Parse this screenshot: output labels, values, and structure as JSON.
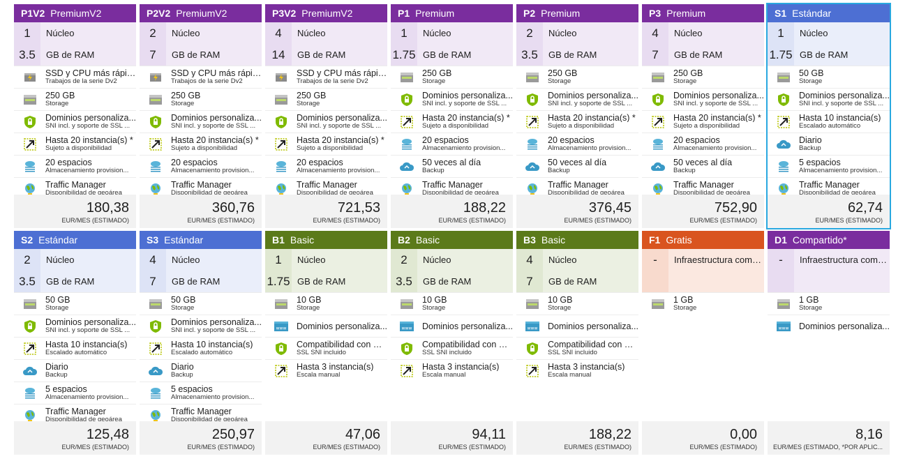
{
  "colors": {
    "premium_head": "#7a2d9e",
    "premium_light": "#e8dcf1",
    "premium_light2": "#f1e9f6",
    "standard_head": "#4d6fd3",
    "standard_light": "#dde3f6",
    "standard_light2": "#eaeefa",
    "basic_head": "#5b7a1a",
    "basic_light": "#e0e8d2",
    "basic_light2": "#ebf0e2",
    "free_head": "#d9541f",
    "free_light": "#f8dacd",
    "free_light2": "#fbe8e0",
    "shared_head": "#7a2d9e",
    "shared_light": "#e8dcf1",
    "shared_light2": "#f1e9f6",
    "selected_border": "#29a8e0"
  },
  "tiles": [
    {
      "code": "P1V2",
      "name": "PremiumV2",
      "scheme": "premium",
      "cores": "1",
      "cores_label": "Núcleo",
      "ram": "3.5",
      "ram_label": "GB de RAM",
      "features": [
        {
          "icon": "ssd-icon",
          "title": "SSD y CPU más rápida",
          "sub": "Trabajos de la serie Dv2"
        },
        {
          "icon": "storage-icon",
          "title": "250 GB",
          "sub": "Storage"
        },
        {
          "icon": "shield-icon",
          "title": "Dominios personaliza...",
          "sub": "SNI incl. y soporte de SSL ..."
        },
        {
          "icon": "scale-icon",
          "title": "Hasta 20 instancia(s) *",
          "sub": "Sujeto a disponibilidad"
        },
        {
          "icon": "staging-icon",
          "title": "20 espacios",
          "sub": "Almacenamiento provision..."
        },
        {
          "icon": "globe-icon",
          "title": "Traffic Manager",
          "sub": "Disponibilidad de geoárea"
        }
      ],
      "price": "180,38",
      "unit": "EUR/MES (ESTIMADO)"
    },
    {
      "code": "P2V2",
      "name": "PremiumV2",
      "scheme": "premium",
      "cores": "2",
      "cores_label": "Núcleo",
      "ram": "7",
      "ram_label": "GB de RAM",
      "features": [
        {
          "icon": "ssd-icon",
          "title": "SSD y CPU más rápida",
          "sub": "Trabajos de la serie Dv2"
        },
        {
          "icon": "storage-icon",
          "title": "250 GB",
          "sub": "Storage"
        },
        {
          "icon": "shield-icon",
          "title": "Dominios personaliza...",
          "sub": "SNI incl. y soporte de SSL ..."
        },
        {
          "icon": "scale-icon",
          "title": "Hasta 20 instancia(s) *",
          "sub": "Sujeto a disponibilidad"
        },
        {
          "icon": "staging-icon",
          "title": "20 espacios",
          "sub": "Almacenamiento provision..."
        },
        {
          "icon": "globe-icon",
          "title": "Traffic Manager",
          "sub": "Disponibilidad de geoárea"
        }
      ],
      "price": "360,76",
      "unit": "EUR/MES (ESTIMADO)"
    },
    {
      "code": "P3V2",
      "name": "PremiumV2",
      "scheme": "premium",
      "cores": "4",
      "cores_label": "Núcleo",
      "ram": "14",
      "ram_label": "GB de RAM",
      "features": [
        {
          "icon": "ssd-icon",
          "title": "SSD y CPU más rápida",
          "sub": "Trabajos de la serie Dv2"
        },
        {
          "icon": "storage-icon",
          "title": "250 GB",
          "sub": "Storage"
        },
        {
          "icon": "shield-icon",
          "title": "Dominios personaliza...",
          "sub": "SNI incl. y soporte de SSL ..."
        },
        {
          "icon": "scale-icon",
          "title": "Hasta 20 instancia(s) *",
          "sub": "Sujeto a disponibilidad"
        },
        {
          "icon": "staging-icon",
          "title": "20 espacios",
          "sub": "Almacenamiento provision..."
        },
        {
          "icon": "globe-icon",
          "title": "Traffic Manager",
          "sub": "Disponibilidad de geoárea"
        }
      ],
      "price": "721,53",
      "unit": "EUR/MES (ESTIMADO)"
    },
    {
      "code": "P1",
      "name": "Premium",
      "scheme": "premium",
      "cores": "1",
      "cores_label": "Núcleo",
      "ram": "1.75",
      "ram_label": "GB de RAM",
      "features": [
        {
          "icon": "storage-icon",
          "title": "250 GB",
          "sub": "Storage"
        },
        {
          "icon": "shield-icon",
          "title": "Dominios personaliza...",
          "sub": "SNI incl. y soporte de SSL ..."
        },
        {
          "icon": "scale-icon",
          "title": "Hasta 20 instancia(s) *",
          "sub": "Sujeto a disponibilidad"
        },
        {
          "icon": "staging-icon",
          "title": "20 espacios",
          "sub": "Almacenamiento provision..."
        },
        {
          "icon": "backup-icon",
          "title": "50 veces al día",
          "sub": "Backup"
        },
        {
          "icon": "globe-icon",
          "title": "Traffic Manager",
          "sub": "Disponibilidad de geoárea"
        }
      ],
      "price": "188,22",
      "unit": "EUR/MES (ESTIMADO)"
    },
    {
      "code": "P2",
      "name": "Premium",
      "scheme": "premium",
      "cores": "2",
      "cores_label": "Núcleo",
      "ram": "3.5",
      "ram_label": "GB de RAM",
      "features": [
        {
          "icon": "storage-icon",
          "title": "250 GB",
          "sub": "Storage"
        },
        {
          "icon": "shield-icon",
          "title": "Dominios personaliza...",
          "sub": "SNI incl. y soporte de SSL ..."
        },
        {
          "icon": "scale-icon",
          "title": "Hasta 20 instancia(s) *",
          "sub": "Sujeto a disponibilidad"
        },
        {
          "icon": "staging-icon",
          "title": "20 espacios",
          "sub": "Almacenamiento provision..."
        },
        {
          "icon": "backup-icon",
          "title": "50 veces al día",
          "sub": "Backup"
        },
        {
          "icon": "globe-icon",
          "title": "Traffic Manager",
          "sub": "Disponibilidad de geoárea"
        }
      ],
      "price": "376,45",
      "unit": "EUR/MES (ESTIMADO)"
    },
    {
      "code": "P3",
      "name": "Premium",
      "scheme": "premium",
      "cores": "4",
      "cores_label": "Núcleo",
      "ram": "7",
      "ram_label": "GB de RAM",
      "features": [
        {
          "icon": "storage-icon",
          "title": "250 GB",
          "sub": "Storage"
        },
        {
          "icon": "shield-icon",
          "title": "Dominios personaliza...",
          "sub": "SNI incl. y soporte de SSL ..."
        },
        {
          "icon": "scale-icon",
          "title": "Hasta 20 instancia(s) *",
          "sub": "Sujeto a disponibilidad"
        },
        {
          "icon": "staging-icon",
          "title": "20 espacios",
          "sub": "Almacenamiento provision..."
        },
        {
          "icon": "backup-icon",
          "title": "50 veces al día",
          "sub": "Backup"
        },
        {
          "icon": "globe-icon",
          "title": "Traffic Manager",
          "sub": "Disponibilidad de geoárea"
        }
      ],
      "price": "752,90",
      "unit": "EUR/MES (ESTIMADO)"
    },
    {
      "code": "S1",
      "name": "Estándar",
      "scheme": "standard",
      "selected": true,
      "cores": "1",
      "cores_label": "Núcleo",
      "ram": "1.75",
      "ram_label": "GB de RAM",
      "features": [
        {
          "icon": "storage-icon",
          "title": "50 GB",
          "sub": "Storage"
        },
        {
          "icon": "shield-icon",
          "title": "Dominios personaliza...",
          "sub": "SNI incl. y soporte de SSL ..."
        },
        {
          "icon": "scale-icon",
          "title": "Hasta 10 instancia(s)",
          "sub": "Escalado automático"
        },
        {
          "icon": "backup-icon",
          "title": "Diario",
          "sub": "Backup"
        },
        {
          "icon": "staging-icon",
          "title": "5 espacios",
          "sub": "Almacenamiento provision..."
        },
        {
          "icon": "globe-icon",
          "title": "Traffic Manager",
          "sub": "Disponibilidad de geoárea"
        }
      ],
      "price": "62,74",
      "unit": "EUR/MES (ESTIMADO)"
    },
    {
      "code": "S2",
      "name": "Estándar",
      "scheme": "standard",
      "cores": "2",
      "cores_label": "Núcleo",
      "ram": "3.5",
      "ram_label": "GB de RAM",
      "features": [
        {
          "icon": "storage-icon",
          "title": "50 GB",
          "sub": "Storage"
        },
        {
          "icon": "shield-icon",
          "title": "Dominios personaliza...",
          "sub": "SNI incl. y soporte de SSL ..."
        },
        {
          "icon": "scale-icon",
          "title": "Hasta 10 instancia(s)",
          "sub": "Escalado automático"
        },
        {
          "icon": "backup-icon",
          "title": "Diario",
          "sub": "Backup"
        },
        {
          "icon": "staging-icon",
          "title": "5 espacios",
          "sub": "Almacenamiento provision..."
        },
        {
          "icon": "globe-icon",
          "title": "Traffic Manager",
          "sub": "Disponibilidad de geoárea"
        }
      ],
      "price": "125,48",
      "unit": "EUR/MES (ESTIMADO)"
    },
    {
      "code": "S3",
      "name": "Estándar",
      "scheme": "standard",
      "cores": "4",
      "cores_label": "Núcleo",
      "ram": "7",
      "ram_label": "GB de RAM",
      "features": [
        {
          "icon": "storage-icon",
          "title": "50 GB",
          "sub": "Storage"
        },
        {
          "icon": "shield-icon",
          "title": "Dominios personaliza...",
          "sub": "SNI incl. y soporte de SSL ..."
        },
        {
          "icon": "scale-icon",
          "title": "Hasta 10 instancia(s)",
          "sub": "Escalado automático"
        },
        {
          "icon": "backup-icon",
          "title": "Diario",
          "sub": "Backup"
        },
        {
          "icon": "staging-icon",
          "title": "5 espacios",
          "sub": "Almacenamiento provision..."
        },
        {
          "icon": "globe-icon",
          "title": "Traffic Manager",
          "sub": "Disponibilidad de geoárea"
        }
      ],
      "price": "250,97",
      "unit": "EUR/MES (ESTIMADO)"
    },
    {
      "code": "B1",
      "name": "Basic",
      "scheme": "basic",
      "cores": "1",
      "cores_label": "Núcleo",
      "ram": "1.75",
      "ram_label": "GB de RAM",
      "features": [
        {
          "icon": "storage-icon",
          "title": "10 GB",
          "sub": "Storage"
        },
        {
          "icon": "www-icon",
          "title": "Dominios personaliza...",
          "sub": ""
        },
        {
          "icon": "shield-icon",
          "title": "Compatibilidad con SSL",
          "sub": "SSL SNI incluido"
        },
        {
          "icon": "scale-icon",
          "title": "Hasta 3 instancia(s)",
          "sub": "Escala manual"
        }
      ],
      "price": "47,06",
      "unit": "EUR/MES (ESTIMADO)"
    },
    {
      "code": "B2",
      "name": "Basic",
      "scheme": "basic",
      "cores": "2",
      "cores_label": "Núcleo",
      "ram": "3.5",
      "ram_label": "GB de RAM",
      "features": [
        {
          "icon": "storage-icon",
          "title": "10 GB",
          "sub": "Storage"
        },
        {
          "icon": "www-icon",
          "title": "Dominios personaliza...",
          "sub": ""
        },
        {
          "icon": "shield-icon",
          "title": "Compatibilidad con SSL",
          "sub": "SSL SNI incluido"
        },
        {
          "icon": "scale-icon",
          "title": "Hasta 3 instancia(s)",
          "sub": "Escala manual"
        }
      ],
      "price": "94,11",
      "unit": "EUR/MES (ESTIMADO)"
    },
    {
      "code": "B3",
      "name": "Basic",
      "scheme": "basic",
      "cores": "4",
      "cores_label": "Núcleo",
      "ram": "7",
      "ram_label": "GB de RAM",
      "features": [
        {
          "icon": "storage-icon",
          "title": "10 GB",
          "sub": "Storage"
        },
        {
          "icon": "www-icon",
          "title": "Dominios personaliza...",
          "sub": ""
        },
        {
          "icon": "shield-icon",
          "title": "Compatibilidad con SSL",
          "sub": "SSL SNI incluido"
        },
        {
          "icon": "scale-icon",
          "title": "Hasta 3 instancia(s)",
          "sub": "Escala manual"
        }
      ],
      "price": "188,22",
      "unit": "EUR/MES (ESTIMADO)"
    },
    {
      "code": "F1",
      "name": "Gratis",
      "scheme": "free",
      "cores": "-",
      "cores_label": "Infraestructura compa...",
      "ram": "",
      "ram_label": "",
      "features": [
        {
          "icon": "storage-icon",
          "title": "1 GB",
          "sub": "Storage"
        }
      ],
      "price": "0,00",
      "unit": "EUR/MES (ESTIMADO)"
    },
    {
      "code": "D1",
      "name": "Compartido*",
      "scheme": "shared",
      "cores": "-",
      "cores_label": "Infraestructura compa...",
      "ram": "",
      "ram_label": "",
      "features": [
        {
          "icon": "storage-icon",
          "title": "1 GB",
          "sub": "Storage"
        },
        {
          "icon": "www-icon",
          "title": "Dominios personaliza...",
          "sub": ""
        }
      ],
      "price": "8,16",
      "unit": "EUR/MES (ESTIMADO, *POR APLIC..."
    }
  ]
}
